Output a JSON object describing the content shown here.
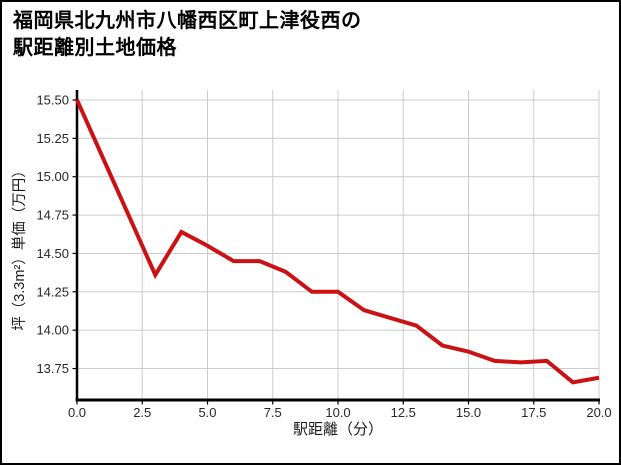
{
  "frame": {
    "background": "#ffffff",
    "border_color": "#000000"
  },
  "title": {
    "line1": "福岡県北九州市八幡西区町上津役西の",
    "line2": "駅距離別土地価格"
  },
  "chart_data": {
    "type": "line",
    "title": "福岡県北九州市八幡西区町上津役西の駅距離別土地価格",
    "xlabel": "駅距離（分）",
    "ylabel": "坪（3.3m²）単価（万円）",
    "x": [
      0,
      1,
      2,
      3,
      4,
      5,
      6,
      7,
      8,
      9,
      10,
      11,
      12,
      13,
      14,
      15,
      16,
      17,
      18,
      19,
      20
    ],
    "y": [
      15.5,
      15.12,
      14.74,
      14.36,
      14.64,
      14.55,
      14.45,
      14.45,
      14.38,
      14.25,
      14.25,
      14.13,
      14.08,
      14.03,
      13.9,
      13.86,
      13.8,
      13.79,
      13.8,
      13.66,
      13.69
    ],
    "xlim": [
      0,
      20
    ],
    "ylim": [
      13.545,
      15.565
    ],
    "xticks": [
      0,
      2.5,
      5,
      7.5,
      10,
      12.5,
      15,
      17.5,
      20
    ],
    "xtick_labels": [
      "0.0",
      "2.5",
      "5.0",
      "7.5",
      "10.0",
      "12.5",
      "15.0",
      "17.5",
      "20.0"
    ],
    "yticks": [
      13.75,
      14.0,
      14.25,
      14.5,
      14.75,
      15.0,
      15.25,
      15.5
    ],
    "ytick_labels": [
      "13.75",
      "14.00",
      "14.25",
      "14.50",
      "14.75",
      "15.00",
      "15.25",
      "15.50"
    ],
    "grid": true,
    "legend": null,
    "line_color": "#cc1114",
    "line_width": 4,
    "grid_color": "#cccccc",
    "axis_color": "#000000",
    "tick_label_color": "#262626",
    "axis_title_color": "#1a1a1a",
    "title_color": "#000000"
  }
}
